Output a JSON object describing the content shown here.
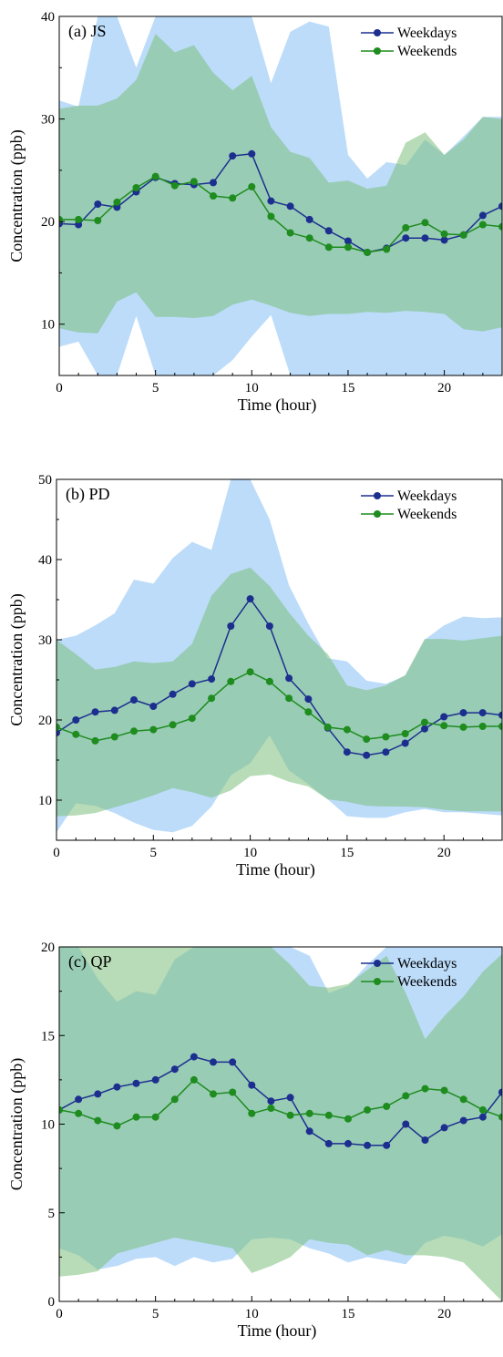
{
  "colors": {
    "weekdays": "#1c2f8f",
    "weekends": "#1e8c1e",
    "weekdays_band": "#bcdcfa",
    "weekends_band": "#7cc07c"
  },
  "chart_data": [
    {
      "type": "line",
      "panel_label": "(a) JS",
      "xlabel": "Time (hour)",
      "ylabel": "Concentration (ppb)",
      "xlim": [
        0,
        23
      ],
      "ylim": [
        5,
        40
      ],
      "xticks": [
        0,
        5,
        10,
        15,
        20
      ],
      "yticks": [
        10,
        20,
        30,
        40
      ],
      "legend_position": "top-right",
      "x": [
        0,
        1,
        2,
        3,
        4,
        5,
        6,
        7,
        8,
        9,
        10,
        11,
        12,
        13,
        14,
        15,
        16,
        17,
        18,
        19,
        20,
        21,
        22,
        23
      ],
      "series": [
        {
          "name": "Weekdays",
          "color": "#1c2f8f",
          "values": [
            19.8,
            19.7,
            21.7,
            21.4,
            22.9,
            24.3,
            23.7,
            23.6,
            23.8,
            26.4,
            26.6,
            22.0,
            21.5,
            20.2,
            19.1,
            18.1,
            17.0,
            17.4,
            18.4,
            18.4,
            18.2,
            18.7,
            20.6,
            21.5
          ],
          "band_upper": [
            31.8,
            31.2,
            40,
            40,
            35,
            40,
            40,
            40,
            40,
            40,
            40,
            33.5,
            38.5,
            39.5,
            39,
            26.5,
            24.2,
            25.8,
            25.5,
            28,
            26.5,
            28.3,
            30.2,
            30.2
          ],
          "band_lower": [
            7.8,
            8.3,
            5,
            5,
            10.8,
            5,
            5,
            5,
            5,
            6.5,
            8.8,
            10.9,
            5,
            5,
            5,
            5,
            5,
            5,
            5,
            5,
            5,
            5,
            5,
            5
          ]
        },
        {
          "name": "Weekends",
          "color": "#1e8c1e",
          "values": [
            20.2,
            20.2,
            20.1,
            21.9,
            23.3,
            24.4,
            23.5,
            23.9,
            22.5,
            22.3,
            23.4,
            20.5,
            18.9,
            18.4,
            17.5,
            17.5,
            17.0,
            17.3,
            19.4,
            19.9,
            18.8,
            18.7,
            19.7,
            19.5
          ],
          "band_upper": [
            31.0,
            31.3,
            31.3,
            32.0,
            33.8,
            38.3,
            36.5,
            37.2,
            34.5,
            32.8,
            34.2,
            29.2,
            26.8,
            26.2,
            23.8,
            24.0,
            23.2,
            23.5,
            27.7,
            28.7,
            26.5,
            28.0,
            30.2,
            30.0
          ],
          "band_lower": [
            9.6,
            9.2,
            9.1,
            12.2,
            13.1,
            10.7,
            10.7,
            10.6,
            10.8,
            11.9,
            12.4,
            11.8,
            11.1,
            10.8,
            11.0,
            11.0,
            11.2,
            11.1,
            11.3,
            11.2,
            11.0,
            9.5,
            9.3,
            9.7
          ]
        }
      ]
    },
    {
      "type": "line",
      "panel_label": "(b) PD",
      "xlabel": "Time (hour)",
      "ylabel": "Concentration (ppb)",
      "xlim": [
        0,
        23
      ],
      "ylim": [
        5,
        50
      ],
      "xticks": [
        0,
        5,
        10,
        15,
        20
      ],
      "yticks": [
        10,
        20,
        30,
        40,
        50
      ],
      "legend_position": "top-right",
      "x": [
        0,
        1,
        2,
        3,
        4,
        5,
        6,
        7,
        8,
        9,
        10,
        11,
        12,
        13,
        14,
        15,
        16,
        17,
        18,
        19,
        20,
        21,
        22,
        23
      ],
      "series": [
        {
          "name": "Weekdays",
          "color": "#1c2f8f",
          "values": [
            18.4,
            20.0,
            21.0,
            21.2,
            22.5,
            21.7,
            23.2,
            24.5,
            25.1,
            31.7,
            35.1,
            31.7,
            25.2,
            22.6,
            19.0,
            16.0,
            15.6,
            16.0,
            17.1,
            18.9,
            20.4,
            20.9,
            20.9,
            20.6
          ],
          "band_upper": [
            30.0,
            30.5,
            31.8,
            33.3,
            37.5,
            37.0,
            40.2,
            42.2,
            41.2,
            50,
            50,
            45.0,
            36.8,
            32.0,
            27.7,
            27.3,
            24.9,
            24.5,
            25.5,
            30.0,
            31.8,
            32.9,
            32.7,
            32.8
          ],
          "band_lower": [
            6.0,
            9.6,
            9.3,
            8.4,
            7.2,
            6.3,
            6.0,
            6.8,
            9.2,
            13.1,
            14.6,
            18.1,
            13.7,
            12.0,
            10.1,
            8.0,
            7.8,
            7.8,
            8.5,
            8.9,
            8.5,
            8.5,
            8.3,
            8.1
          ]
        },
        {
          "name": "Weekends",
          "color": "#1e8c1e",
          "values": [
            19.1,
            18.2,
            17.4,
            17.9,
            18.6,
            18.8,
            19.4,
            20.2,
            22.7,
            24.8,
            26.0,
            24.8,
            22.7,
            21.0,
            19.1,
            18.8,
            17.6,
            17.9,
            18.3,
            19.7,
            19.3,
            19.1,
            19.2,
            19.2
          ],
          "band_upper": [
            30.0,
            28.2,
            26.3,
            26.6,
            27.3,
            27.1,
            27.3,
            29.5,
            35.5,
            38.2,
            39.0,
            36.7,
            33.4,
            30.5,
            28.2,
            24.3,
            23.7,
            24.3,
            25.6,
            30.1,
            30.1,
            29.9,
            30.2,
            30.5
          ],
          "band_lower": [
            8.0,
            8.1,
            8.4,
            9.1,
            9.8,
            10.6,
            11.5,
            11.0,
            10.3,
            11.2,
            13.0,
            13.2,
            12.3,
            11.7,
            10.1,
            9.8,
            9.3,
            9.2,
            9.2,
            9.1,
            8.8,
            8.6,
            8.6,
            8.6
          ]
        }
      ]
    },
    {
      "type": "line",
      "panel_label": "(c) QP",
      "xlabel": "Time (hour)",
      "ylabel": "Concentration (ppb)",
      "xlim": [
        0,
        23
      ],
      "ylim": [
        0,
        20
      ],
      "xticks": [
        0,
        5,
        10,
        15,
        20
      ],
      "yticks": [
        0,
        5,
        10,
        15,
        20
      ],
      "legend_position": "top-right",
      "x": [
        0,
        1,
        2,
        3,
        4,
        5,
        6,
        7,
        8,
        9,
        10,
        11,
        12,
        13,
        14,
        15,
        16,
        17,
        18,
        19,
        20,
        21,
        22,
        23
      ],
      "series": [
        {
          "name": "Weekdays",
          "color": "#1c2f8f",
          "values": [
            10.8,
            11.4,
            11.7,
            12.1,
            12.3,
            12.5,
            13.1,
            13.8,
            13.5,
            13.5,
            12.2,
            11.3,
            11.5,
            9.6,
            8.9,
            8.9,
            8.8,
            8.8,
            10.0,
            9.1,
            9.8,
            10.2,
            10.4,
            11.8
          ],
          "band_upper": [
            20,
            20,
            18.2,
            16.9,
            17.5,
            17.3,
            19.3,
            20,
            20,
            20,
            20,
            20,
            20,
            19.5,
            17.4,
            17.8,
            19.0,
            20,
            20,
            20,
            20,
            20,
            20,
            20
          ],
          "band_lower": [
            3.0,
            2.6,
            1.8,
            2.0,
            2.4,
            2.5,
            2.0,
            2.5,
            2.2,
            2.4,
            3.5,
            3.6,
            3.5,
            3.0,
            2.7,
            2.2,
            2.5,
            2.3,
            2.1,
            3.3,
            3.7,
            3.5,
            3.1,
            3.8
          ]
        },
        {
          "name": "Weekends",
          "color": "#1e8c1e",
          "values": [
            10.8,
            10.6,
            10.2,
            9.9,
            10.4,
            10.4,
            11.4,
            12.5,
            11.7,
            11.8,
            10.6,
            10.9,
            10.5,
            10.6,
            10.5,
            10.3,
            10.8,
            11.0,
            11.6,
            12.0,
            11.9,
            11.4,
            10.8,
            10.4
          ],
          "band_upper": [
            20,
            20,
            20,
            20,
            20,
            20,
            20,
            20,
            20,
            20,
            20,
            20,
            19.0,
            17.8,
            17.7,
            17.9,
            18.7,
            19.5,
            17.4,
            14.8,
            16.1,
            17.2,
            18.6,
            19.6
          ],
          "band_lower": [
            1.4,
            1.5,
            1.7,
            2.7,
            3.0,
            3.3,
            3.6,
            3.4,
            3.2,
            3.0,
            1.6,
            2.0,
            2.5,
            3.5,
            3.3,
            3.2,
            2.6,
            2.9,
            2.6,
            2.6,
            2.5,
            2.2,
            1.1,
            0
          ]
        }
      ]
    }
  ]
}
